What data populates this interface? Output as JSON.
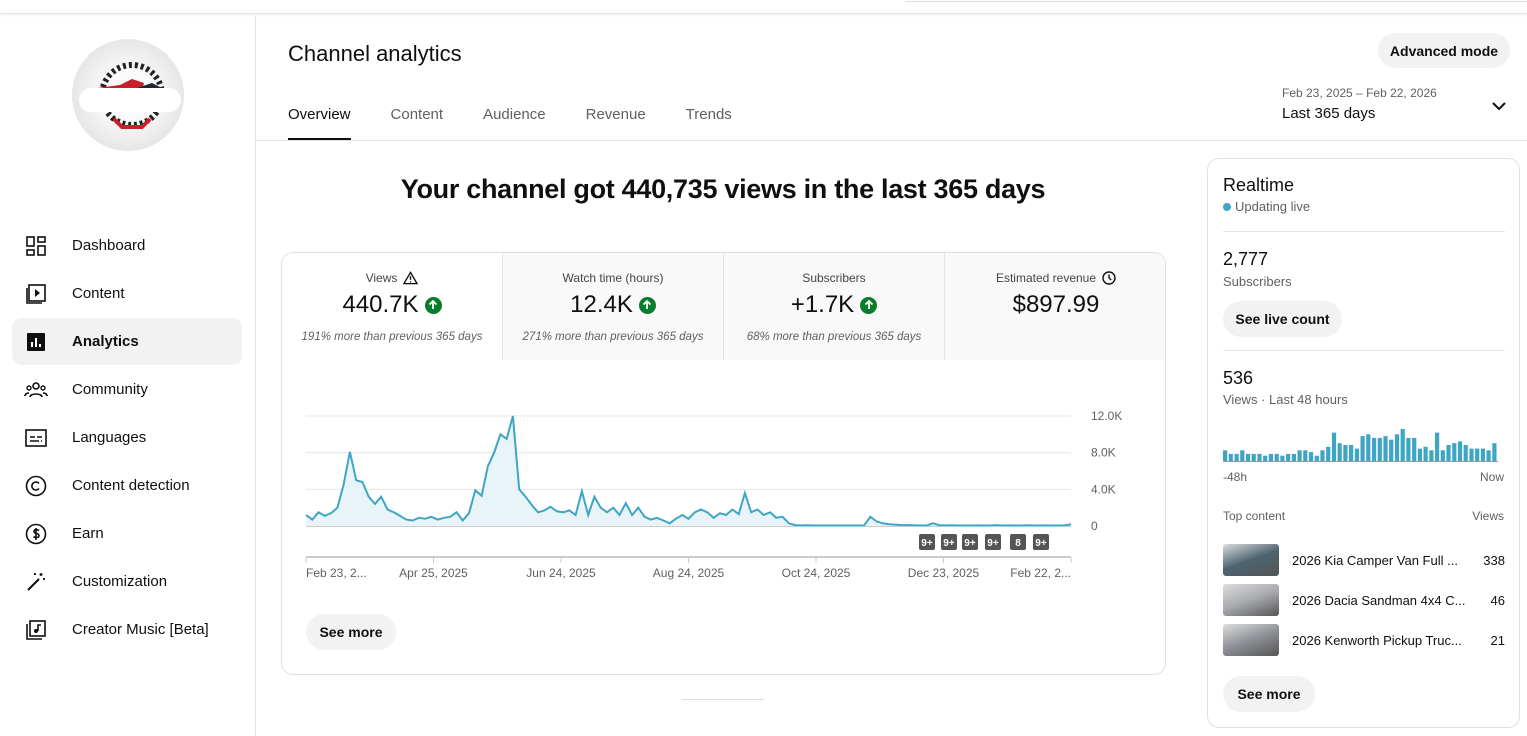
{
  "sidebar": {
    "items": [
      {
        "label": "Dashboard",
        "icon": "dashboard-icon"
      },
      {
        "label": "Content",
        "icon": "content-icon"
      },
      {
        "label": "Analytics",
        "icon": "analytics-icon",
        "active": true
      },
      {
        "label": "Community",
        "icon": "community-icon"
      },
      {
        "label": "Languages",
        "icon": "subtitles-icon"
      },
      {
        "label": "Content detection",
        "icon": "copyright-icon"
      },
      {
        "label": "Earn",
        "icon": "dollar-icon"
      },
      {
        "label": "Customization",
        "icon": "magic-wand-icon"
      },
      {
        "label": "Creator Music [Beta]",
        "icon": "music-icon"
      }
    ]
  },
  "header": {
    "title": "Channel analytics",
    "advanced_mode": "Advanced mode",
    "tabs": [
      "Overview",
      "Content",
      "Audience",
      "Revenue",
      "Trends"
    ],
    "active_tab": "Overview",
    "date_range": "Feb 23, 2025 – Feb 22, 2026",
    "period": "Last 365 days"
  },
  "headline": "Your channel got 440,735 views in the last 365 days",
  "metrics": [
    {
      "title": "Views",
      "value": "440.7K",
      "delta": "191% more than previous 365 days",
      "icon": "warning-icon",
      "trend": "up"
    },
    {
      "title": "Watch time (hours)",
      "value": "12.4K",
      "delta": "271% more than previous 365 days",
      "trend": "up"
    },
    {
      "title": "Subscribers",
      "value": "+1.7K",
      "delta": "68% more than previous 365 days",
      "trend": "up"
    },
    {
      "title": "Estimated revenue",
      "value": "$897.99",
      "icon": "clock-icon"
    }
  ],
  "chart_data": {
    "type": "area",
    "series_color": "#3ea6c4",
    "x_range": [
      "Feb 23, 2025",
      "Feb 22, 2026"
    ],
    "x_tick_labels": [
      "Feb 23, 2...",
      "Apr 25, 2025",
      "Jun 24, 2025",
      "Aug 24, 2025",
      "Oct 24, 2025",
      "Dec 23, 2025",
      "Feb 22, 2..."
    ],
    "y_tick_labels": [
      "0",
      "4.0K",
      "8.0K",
      "12.0K"
    ],
    "ylim": [
      0,
      12000
    ],
    "grid": true,
    "values": [
      1200,
      700,
      1500,
      1100,
      1400,
      2000,
      4500,
      8100,
      5000,
      4800,
      3200,
      2400,
      3200,
      1800,
      1500,
      1100,
      700,
      600,
      900,
      800,
      1000,
      700,
      900,
      1000,
      1500,
      600,
      1400,
      3900,
      3300,
      6500,
      8000,
      10000,
      9500,
      12000,
      4000,
      3200,
      2300,
      1500,
      1700,
      2100,
      1600,
      1500,
      1700,
      1200,
      3800,
      1200,
      3200,
      2000,
      1500,
      2000,
      1200,
      2500,
      1200,
      2000,
      1000,
      700,
      900,
      600,
      300,
      800,
      1200,
      800,
      1500,
      1800,
      1500,
      900,
      1400,
      1200,
      1800,
      1300,
      3600,
      1500,
      1800,
      1200,
      1500,
      900,
      1000,
      300,
      100,
      50,
      80,
      50,
      50,
      50,
      50,
      50,
      50,
      50,
      50,
      50,
      1000,
      500,
      300,
      200,
      150,
      100,
      100,
      80,
      50,
      50,
      300,
      80,
      60,
      80,
      50,
      50,
      50,
      60,
      50,
      50,
      100,
      50,
      60,
      50,
      50,
      80,
      50,
      50,
      60,
      50,
      50,
      50,
      200
    ],
    "annotations": [
      "9+",
      "9+",
      "9+",
      "9+",
      "8",
      "9+"
    ]
  },
  "see_more": "See more",
  "realtime": {
    "title": "Realtime",
    "status": "Updating live",
    "subscribers": "2,777",
    "subscribers_label": "Subscribers",
    "live_count_button": "See live count",
    "views": "536",
    "views_label": "Views · Last 48 hours",
    "bar_color": "#3ea6c4",
    "hourly_views": [
      3,
      2,
      2,
      3,
      2,
      2,
      2,
      1.5,
      2,
      2,
      1.5,
      2,
      2,
      3,
      3,
      2.5,
      1.5,
      3,
      4,
      8,
      5,
      4.5,
      4.5,
      3.5,
      7,
      7.5,
      6.5,
      6.5,
      7,
      6,
      7.5,
      9,
      6.5,
      6.5,
      3.5,
      4,
      3,
      8,
      3,
      4.5,
      5,
      5.5,
      4.5,
      3.5,
      3.5,
      3.5,
      3,
      5
    ],
    "axis_start": "-48h",
    "axis_end": "Now",
    "top_content_label": "Top content",
    "views_col_label": "Views",
    "top_content": [
      {
        "title": "2026 Kia Camper Van Full ...",
        "views": "338",
        "thumb_color": "#4c6470"
      },
      {
        "title": "2026 Dacia Sandman 4x4 C...",
        "views": "46",
        "thumb_color": "#a7a9ad"
      },
      {
        "title": "2026 Kenworth Pickup Truc...",
        "views": "21",
        "thumb_color": "#8d9095"
      }
    ],
    "see_more": "See more"
  }
}
